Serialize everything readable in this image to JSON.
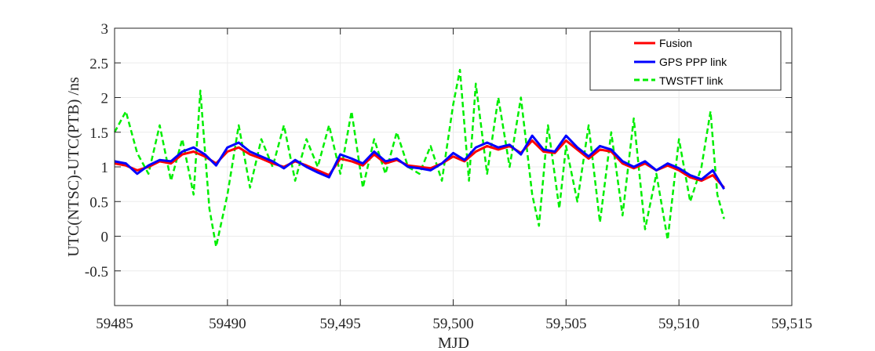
{
  "chart_data": {
    "type": "line",
    "xlabel": "MJD",
    "ylabel": "UTC(NTSC)-UTC(PTB) /ns",
    "xlim": [
      59485,
      59515
    ],
    "ylim": [
      -1,
      3
    ],
    "x_ticks": [
      59485,
      59490,
      59495,
      59500,
      59505,
      59510,
      59515
    ],
    "x_tick_labels": [
      "59485",
      "59490",
      "59,495",
      "59,500",
      "59,505",
      "59,510",
      "59,515"
    ],
    "y_ticks": [
      -0.5,
      0,
      0.5,
      1,
      1.5,
      2,
      2.5,
      3
    ],
    "y_tick_labels": [
      "-0.5",
      "0",
      "0.5",
      "1",
      "1.5",
      "2",
      "2.5",
      "3"
    ],
    "grid": true,
    "legend_position": "top-right",
    "series": [
      {
        "name": "Fusion",
        "color": "#ff0000",
        "style": "solid",
        "points": [
          [
            59485.0,
            1.05
          ],
          [
            59485.5,
            1.02
          ],
          [
            59486.0,
            0.95
          ],
          [
            59486.5,
            1.0
          ],
          [
            59487.0,
            1.08
          ],
          [
            59487.5,
            1.05
          ],
          [
            59488.0,
            1.18
          ],
          [
            59488.5,
            1.22
          ],
          [
            59489.0,
            1.15
          ],
          [
            59489.5,
            1.05
          ],
          [
            59490.0,
            1.22
          ],
          [
            59490.5,
            1.28
          ],
          [
            59491.0,
            1.18
          ],
          [
            59491.5,
            1.12
          ],
          [
            59492.0,
            1.05
          ],
          [
            59492.5,
            1.0
          ],
          [
            59493.0,
            1.08
          ],
          [
            59493.5,
            1.02
          ],
          [
            59494.0,
            0.95
          ],
          [
            59494.5,
            0.88
          ],
          [
            59495.0,
            1.12
          ],
          [
            59495.5,
            1.08
          ],
          [
            59496.0,
            1.02
          ],
          [
            59496.5,
            1.18
          ],
          [
            59497.0,
            1.05
          ],
          [
            59497.5,
            1.1
          ],
          [
            59498.0,
            1.02
          ],
          [
            59498.5,
            1.0
          ],
          [
            59499.0,
            0.98
          ],
          [
            59499.5,
            1.05
          ],
          [
            59500.0,
            1.15
          ],
          [
            59500.5,
            1.08
          ],
          [
            59501.0,
            1.22
          ],
          [
            59501.5,
            1.3
          ],
          [
            59502.0,
            1.25
          ],
          [
            59502.5,
            1.3
          ],
          [
            59503.0,
            1.2
          ],
          [
            59503.5,
            1.38
          ],
          [
            59504.0,
            1.22
          ],
          [
            59504.5,
            1.2
          ],
          [
            59505.0,
            1.38
          ],
          [
            59505.5,
            1.25
          ],
          [
            59506.0,
            1.12
          ],
          [
            59506.5,
            1.25
          ],
          [
            59507.0,
            1.22
          ],
          [
            59507.5,
            1.05
          ],
          [
            59508.0,
            0.98
          ],
          [
            59508.5,
            1.05
          ],
          [
            59509.0,
            0.95
          ],
          [
            59509.5,
            1.02
          ],
          [
            59510.0,
            0.95
          ],
          [
            59510.5,
            0.85
          ],
          [
            59511.0,
            0.8
          ],
          [
            59511.5,
            0.88
          ],
          [
            59512.0,
            0.7
          ]
        ]
      },
      {
        "name": "GPS PPP link",
        "color": "#0000ff",
        "style": "solid",
        "points": [
          [
            59485.0,
            1.08
          ],
          [
            59485.5,
            1.05
          ],
          [
            59486.0,
            0.9
          ],
          [
            59486.5,
            1.02
          ],
          [
            59487.0,
            1.1
          ],
          [
            59487.5,
            1.08
          ],
          [
            59488.0,
            1.22
          ],
          [
            59488.5,
            1.28
          ],
          [
            59489.0,
            1.18
          ],
          [
            59489.5,
            1.02
          ],
          [
            59490.0,
            1.28
          ],
          [
            59490.5,
            1.35
          ],
          [
            59491.0,
            1.22
          ],
          [
            59491.5,
            1.15
          ],
          [
            59492.0,
            1.08
          ],
          [
            59492.5,
            0.98
          ],
          [
            59493.0,
            1.1
          ],
          [
            59493.5,
            1.0
          ],
          [
            59494.0,
            0.92
          ],
          [
            59494.5,
            0.85
          ],
          [
            59495.0,
            1.18
          ],
          [
            59495.5,
            1.12
          ],
          [
            59496.0,
            1.05
          ],
          [
            59496.5,
            1.22
          ],
          [
            59497.0,
            1.08
          ],
          [
            59497.5,
            1.12
          ],
          [
            59498.0,
            1.0
          ],
          [
            59498.5,
            0.98
          ],
          [
            59499.0,
            0.95
          ],
          [
            59499.5,
            1.05
          ],
          [
            59500.0,
            1.2
          ],
          [
            59500.5,
            1.1
          ],
          [
            59501.0,
            1.28
          ],
          [
            59501.5,
            1.35
          ],
          [
            59502.0,
            1.28
          ],
          [
            59502.5,
            1.32
          ],
          [
            59503.0,
            1.18
          ],
          [
            59503.5,
            1.45
          ],
          [
            59504.0,
            1.25
          ],
          [
            59504.5,
            1.22
          ],
          [
            59505.0,
            1.45
          ],
          [
            59505.5,
            1.28
          ],
          [
            59506.0,
            1.15
          ],
          [
            59506.5,
            1.3
          ],
          [
            59507.0,
            1.25
          ],
          [
            59507.5,
            1.08
          ],
          [
            59508.0,
            1.0
          ],
          [
            59508.5,
            1.08
          ],
          [
            59509.0,
            0.95
          ],
          [
            59509.5,
            1.05
          ],
          [
            59510.0,
            0.98
          ],
          [
            59510.5,
            0.88
          ],
          [
            59511.0,
            0.82
          ],
          [
            59511.5,
            0.95
          ],
          [
            59512.0,
            0.68
          ]
        ]
      },
      {
        "name": "TWSTFT link",
        "color": "#00ee00",
        "style": "dashed",
        "points": [
          [
            59485.0,
            1.5
          ],
          [
            59485.5,
            1.8
          ],
          [
            59486.0,
            1.2
          ],
          [
            59486.5,
            0.9
          ],
          [
            59487.0,
            1.6
          ],
          [
            59487.5,
            0.8
          ],
          [
            59488.0,
            1.4
          ],
          [
            59488.5,
            0.6
          ],
          [
            59488.8,
            2.1
          ],
          [
            59489.2,
            0.4
          ],
          [
            59489.5,
            -0.15
          ],
          [
            59490.0,
            0.6
          ],
          [
            59490.5,
            1.6
          ],
          [
            59491.0,
            0.7
          ],
          [
            59491.5,
            1.4
          ],
          [
            59492.0,
            1.0
          ],
          [
            59492.5,
            1.6
          ],
          [
            59493.0,
            0.8
          ],
          [
            59493.5,
            1.4
          ],
          [
            59494.0,
            1.0
          ],
          [
            59494.5,
            1.6
          ],
          [
            59495.0,
            0.9
          ],
          [
            59495.5,
            1.8
          ],
          [
            59496.0,
            0.7
          ],
          [
            59496.5,
            1.4
          ],
          [
            59497.0,
            0.9
          ],
          [
            59497.5,
            1.5
          ],
          [
            59498.0,
            1.0
          ],
          [
            59498.5,
            0.9
          ],
          [
            59499.0,
            1.3
          ],
          [
            59499.5,
            0.8
          ],
          [
            59500.0,
            1.9
          ],
          [
            59500.3,
            2.4
          ],
          [
            59500.7,
            0.8
          ],
          [
            59501.0,
            2.2
          ],
          [
            59501.5,
            0.9
          ],
          [
            59502.0,
            2.0
          ],
          [
            59502.5,
            1.0
          ],
          [
            59503.0,
            2.0
          ],
          [
            59503.5,
            0.6
          ],
          [
            59503.8,
            0.15
          ],
          [
            59504.2,
            1.6
          ],
          [
            59504.7,
            0.4
          ],
          [
            59505.0,
            1.3
          ],
          [
            59505.5,
            0.5
          ],
          [
            59506.0,
            1.6
          ],
          [
            59506.5,
            0.2
          ],
          [
            59507.0,
            1.5
          ],
          [
            59507.5,
            0.3
          ],
          [
            59508.0,
            1.7
          ],
          [
            59508.5,
            0.1
          ],
          [
            59509.0,
            0.9
          ],
          [
            59509.5,
            -0.05
          ],
          [
            59510.0,
            1.4
          ],
          [
            59510.5,
            0.5
          ],
          [
            59511.0,
            1.0
          ],
          [
            59511.4,
            1.8
          ],
          [
            59511.7,
            0.6
          ],
          [
            59512.0,
            0.25
          ]
        ]
      }
    ]
  }
}
